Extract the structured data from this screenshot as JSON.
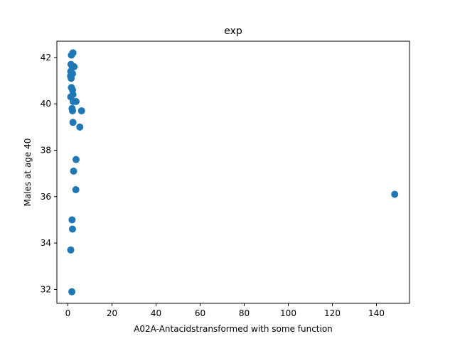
{
  "chart_data": {
    "type": "scatter",
    "title": "exp",
    "xlabel": "A02A-Antacidstransformed with some function",
    "ylabel": "Males at age 40",
    "xlim": [
      -5,
      155
    ],
    "ylim": [
      31.4,
      42.7
    ],
    "x_ticks": [
      0,
      20,
      40,
      60,
      80,
      100,
      120,
      140
    ],
    "y_ticks": [
      32,
      34,
      36,
      38,
      40,
      42
    ],
    "grid": false,
    "legend": "none",
    "marker_color": "#1f77b4",
    "series": [
      {
        "points": [
          {
            "x": 2.3,
            "y": 42.2
          },
          {
            "x": 1.6,
            "y": 42.1
          },
          {
            "x": 1.4,
            "y": 41.7
          },
          {
            "x": 2.0,
            "y": 41.6
          },
          {
            "x": 2.8,
            "y": 41.6
          },
          {
            "x": 1.3,
            "y": 41.4
          },
          {
            "x": 2.1,
            "y": 41.3
          },
          {
            "x": 1.2,
            "y": 41.2
          },
          {
            "x": 1.5,
            "y": 41.1
          },
          {
            "x": 1.6,
            "y": 40.7
          },
          {
            "x": 2.1,
            "y": 40.6
          },
          {
            "x": 2.3,
            "y": 40.4
          },
          {
            "x": 1.3,
            "y": 40.3
          },
          {
            "x": 2.4,
            "y": 40.1
          },
          {
            "x": 3.7,
            "y": 40.1
          },
          {
            "x": 1.9,
            "y": 39.8
          },
          {
            "x": 2.1,
            "y": 39.7
          },
          {
            "x": 6.2,
            "y": 39.7
          },
          {
            "x": 2.3,
            "y": 39.2
          },
          {
            "x": 5.4,
            "y": 39.0
          },
          {
            "x": 3.7,
            "y": 37.6
          },
          {
            "x": 2.6,
            "y": 37.1
          },
          {
            "x": 3.6,
            "y": 36.3
          },
          {
            "x": 148.3,
            "y": 36.1
          },
          {
            "x": 1.9,
            "y": 35.0
          },
          {
            "x": 2.1,
            "y": 34.6
          },
          {
            "x": 1.3,
            "y": 33.7
          },
          {
            "x": 1.8,
            "y": 31.9
          }
        ]
      }
    ]
  }
}
